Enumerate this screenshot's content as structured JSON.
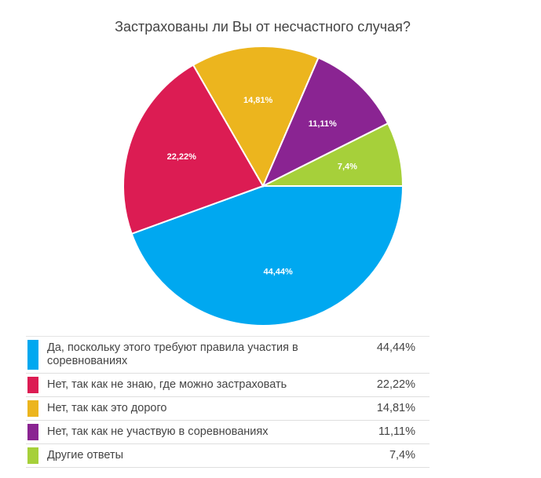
{
  "chart_data": {
    "type": "pie",
    "title": "Застрахованы ли Вы от несчастного случая?",
    "slices": [
      {
        "label": "Да, поскольку этого требуют правила участия в соревнованиях",
        "value": 44.44,
        "display": "44,44%",
        "color": "#00a8f0"
      },
      {
        "label": "Нет, так как не знаю, где можно застраховать",
        "value": 22.22,
        "display": "22,22%",
        "color": "#dc1c53"
      },
      {
        "label": "Нет, так как это дорого",
        "value": 14.81,
        "display": "14,81%",
        "color": "#ecb51e"
      },
      {
        "label": "Нет, так как не участвую в соревнованиях",
        "value": 11.11,
        "display": "11,11%",
        "color": "#8a2492"
      },
      {
        "label": "Другие ответы",
        "value": 7.4,
        "display": "7,4%",
        "color": "#a6d03a"
      }
    ],
    "legend_position": "bottom"
  }
}
